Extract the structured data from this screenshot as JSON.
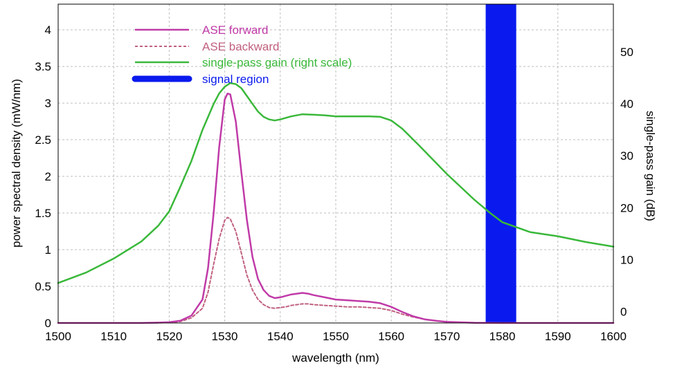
{
  "chart_data": {
    "type": "line",
    "xlabel": "wavelength (nm)",
    "ylabel": "power spectral density (mW/nm)",
    "y2label": "single-pass gain (dB)",
    "xlim": [
      1500,
      1600
    ],
    "ylim": [
      0,
      4.35
    ],
    "y2lim": [
      -2.2,
      59.2
    ],
    "x_ticks": [
      "1500",
      "1510",
      "1520",
      "1530",
      "1540",
      "1550",
      "1560",
      "1570",
      "1580",
      "1590",
      "1600"
    ],
    "y_ticks": [
      "0",
      "0.5",
      "1",
      "1.5",
      "2",
      "2.5",
      "3",
      "3.5",
      "4"
    ],
    "y2_ticks": [
      "0",
      "10",
      "20",
      "30",
      "40",
      "50"
    ],
    "grid": true,
    "legend_position": "top-left",
    "signal_region": {
      "x_from": 1577,
      "x_to": 1582.5,
      "color": "#0a1aee",
      "label": "signal region"
    },
    "series": [
      {
        "name": "ASE forward",
        "axis": "left",
        "color": "#c03aa8",
        "style": "solid",
        "x": [
          1500,
          1515,
          1518,
          1520,
          1522,
          1524,
          1526,
          1527,
          1528,
          1529,
          1530,
          1530.5,
          1531,
          1532,
          1533,
          1534,
          1535,
          1536,
          1537,
          1538,
          1539,
          1540,
          1541,
          1542,
          1543,
          1544,
          1545,
          1546,
          1548,
          1550,
          1552,
          1554,
          1556,
          1558,
          1560,
          1562,
          1564,
          1566,
          1568,
          1570,
          1575,
          1580,
          1590,
          1600
        ],
        "y": [
          0,
          0,
          0.005,
          0.01,
          0.03,
          0.1,
          0.32,
          0.75,
          1.5,
          2.4,
          3.05,
          3.13,
          3.12,
          2.75,
          2.05,
          1.4,
          0.9,
          0.6,
          0.45,
          0.37,
          0.34,
          0.35,
          0.37,
          0.39,
          0.4,
          0.41,
          0.4,
          0.38,
          0.35,
          0.32,
          0.31,
          0.3,
          0.29,
          0.27,
          0.22,
          0.15,
          0.09,
          0.05,
          0.03,
          0.015,
          0.003,
          0,
          0,
          0
        ]
      },
      {
        "name": "ASE backward",
        "axis": "left",
        "color": "#c0607e",
        "style": "dashed",
        "x": [
          1500,
          1515,
          1518,
          1520,
          1522,
          1524,
          1526,
          1527,
          1528,
          1529,
          1530,
          1530.5,
          1531,
          1532,
          1533,
          1534,
          1535,
          1536,
          1537,
          1538,
          1539,
          1540,
          1541,
          1542,
          1543,
          1544,
          1545,
          1546,
          1548,
          1550,
          1552,
          1554,
          1556,
          1558,
          1560,
          1562,
          1564,
          1566,
          1568,
          1570,
          1575,
          1580,
          1590,
          1600
        ],
        "y": [
          0,
          0,
          0.003,
          0.006,
          0.02,
          0.07,
          0.2,
          0.42,
          0.8,
          1.15,
          1.4,
          1.44,
          1.42,
          1.25,
          0.95,
          0.65,
          0.45,
          0.32,
          0.25,
          0.21,
          0.2,
          0.21,
          0.22,
          0.24,
          0.25,
          0.26,
          0.26,
          0.25,
          0.24,
          0.23,
          0.22,
          0.22,
          0.21,
          0.2,
          0.17,
          0.12,
          0.08,
          0.05,
          0.03,
          0.015,
          0.003,
          0,
          0,
          0
        ]
      },
      {
        "name": "single-pass gain (right scale)",
        "axis": "right",
        "color": "#3ab83a",
        "style": "solid",
        "x": [
          1500,
          1505,
          1510,
          1515,
          1518,
          1520,
          1522,
          1524,
          1526,
          1528,
          1529,
          1530,
          1531,
          1532,
          1533,
          1534,
          1535,
          1536,
          1537,
          1538,
          1539,
          1540,
          1542,
          1544,
          1546,
          1548,
          1550,
          1552,
          1554,
          1556,
          1558,
          1560,
          1562,
          1565,
          1570,
          1575,
          1578,
          1580,
          1585,
          1590,
          1595,
          1600
        ],
        "y": [
          5.5,
          7.5,
          10.2,
          13.5,
          16.5,
          19.3,
          24,
          29,
          35,
          40,
          42,
          43.3,
          44,
          43.8,
          43,
          41.5,
          40,
          38.5,
          37.5,
          37,
          36.8,
          37,
          37.6,
          38,
          37.9,
          37.8,
          37.6,
          37.6,
          37.6,
          37.6,
          37.5,
          36.8,
          35.2,
          32,
          26.5,
          21.5,
          18.8,
          17.2,
          15.3,
          14.5,
          13.4,
          12.5
        ]
      }
    ]
  }
}
